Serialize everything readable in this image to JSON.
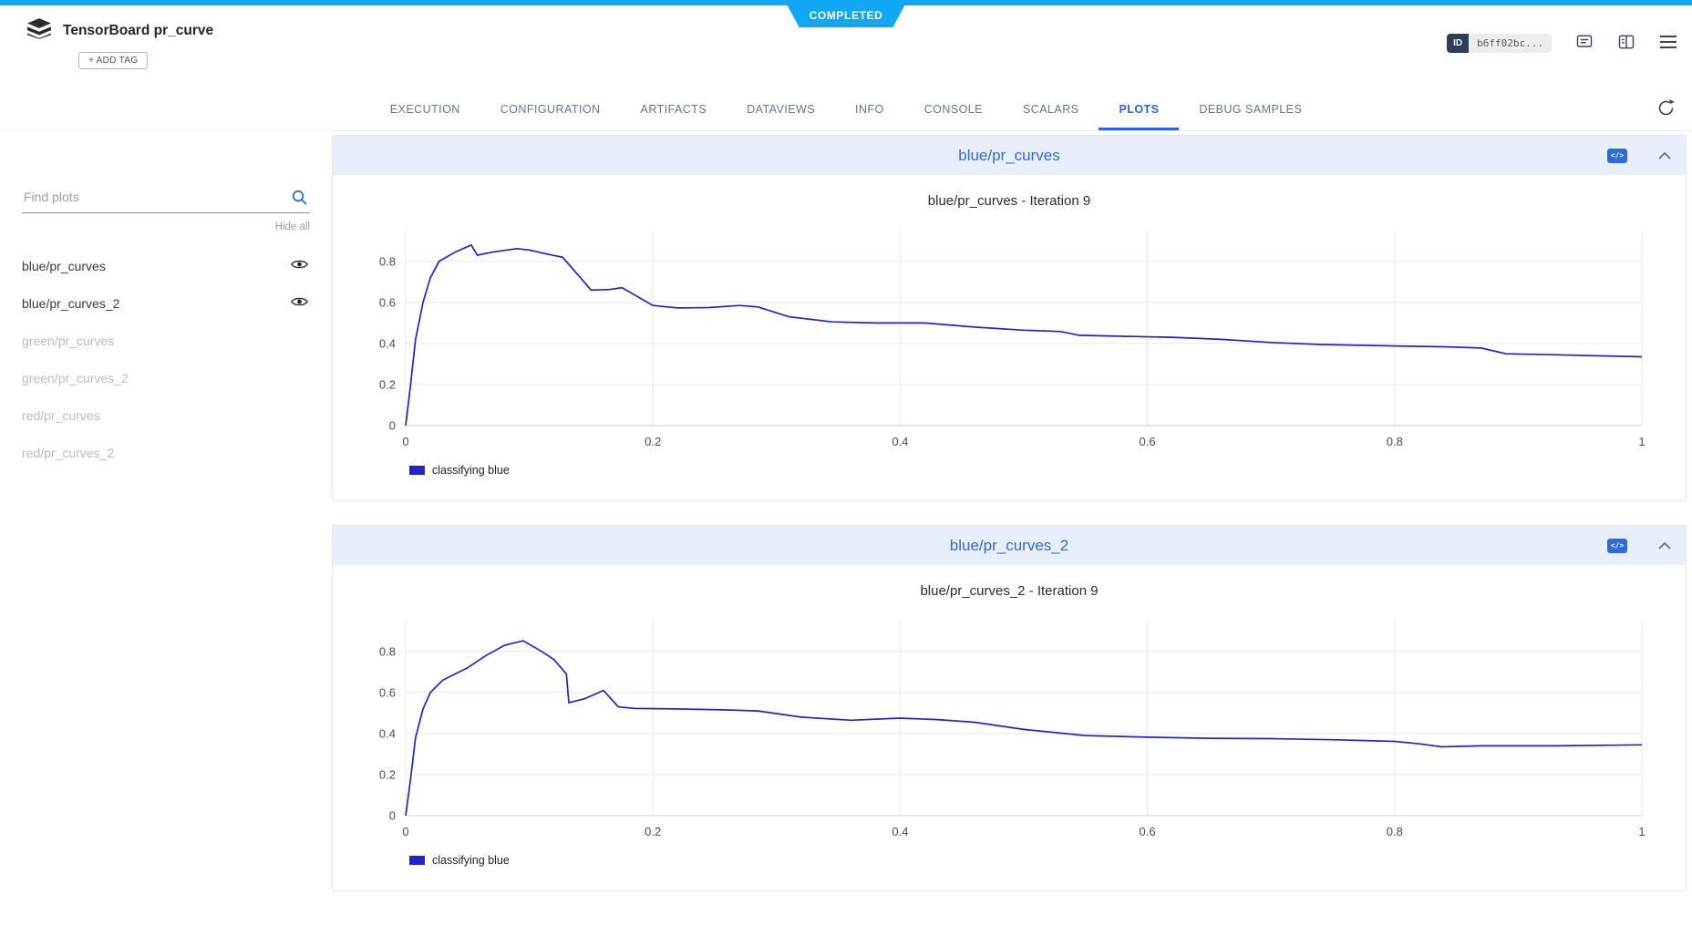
{
  "status_banner": "COMPLETED",
  "header": {
    "title": "TensorBoard pr_curve",
    "add_tag_label": "+ ADD TAG",
    "id_chip": {
      "label": "ID",
      "value": "b6ff02bc..."
    }
  },
  "tabs": [
    {
      "label": "EXECUTION"
    },
    {
      "label": "CONFIGURATION"
    },
    {
      "label": "ARTIFACTS"
    },
    {
      "label": "DATAVIEWS"
    },
    {
      "label": "INFO"
    },
    {
      "label": "CONSOLE"
    },
    {
      "label": "SCALARS"
    },
    {
      "label": "PLOTS",
      "active": true
    },
    {
      "label": "DEBUG SAMPLES"
    }
  ],
  "sidebar": {
    "search_placeholder": "Find plots",
    "hide_all_label": "Hide all",
    "items": [
      {
        "label": "blue/pr_curves",
        "visible": true
      },
      {
        "label": "blue/pr_curves_2",
        "visible": true
      },
      {
        "label": "green/pr_curves",
        "visible": false
      },
      {
        "label": "green/pr_curves_2",
        "visible": false
      },
      {
        "label": "red/pr_curves",
        "visible": false
      },
      {
        "label": "red/pr_curves_2",
        "visible": false
      }
    ]
  },
  "panels": [
    {
      "title": "blue/pr_curves"
    },
    {
      "title": "blue/pr_curves_2"
    }
  ],
  "icons": {
    "code_glyph": "</>"
  },
  "chart_data": [
    {
      "type": "line",
      "title": "blue/pr_curves - Iteration 9",
      "xlim": [
        0,
        1
      ],
      "ylim": [
        0,
        0.95
      ],
      "xticks": [
        0,
        0.2,
        0.4,
        0.6,
        0.8,
        1
      ],
      "yticks": [
        0,
        0.2,
        0.4,
        0.6,
        0.8
      ],
      "grid": true,
      "legend_position": "bottom-left",
      "line_color": "#2323cd",
      "series": [
        {
          "name": "classifying blue",
          "x": [
            0,
            0.004,
            0.008,
            0.014,
            0.02,
            0.027,
            0.04,
            0.053,
            0.058,
            0.07,
            0.09,
            0.1,
            0.115,
            0.127,
            0.14,
            0.15,
            0.165,
            0.175,
            0.2,
            0.22,
            0.245,
            0.27,
            0.285,
            0.31,
            0.345,
            0.38,
            0.42,
            0.46,
            0.5,
            0.53,
            0.545,
            0.58,
            0.62,
            0.66,
            0.7,
            0.74,
            0.8,
            0.84,
            0.87,
            0.89,
            0.93,
            1.0
          ],
          "y": [
            0,
            0.2,
            0.42,
            0.6,
            0.72,
            0.8,
            0.845,
            0.88,
            0.83,
            0.845,
            0.862,
            0.855,
            0.835,
            0.82,
            0.73,
            0.66,
            0.663,
            0.672,
            0.585,
            0.573,
            0.575,
            0.585,
            0.578,
            0.53,
            0.505,
            0.5,
            0.5,
            0.48,
            0.465,
            0.458,
            0.44,
            0.435,
            0.43,
            0.42,
            0.405,
            0.395,
            0.388,
            0.384,
            0.378,
            0.35,
            0.345,
            0.335
          ]
        }
      ]
    },
    {
      "type": "line",
      "title": "blue/pr_curves_2 - Iteration 9",
      "xlim": [
        0,
        1
      ],
      "ylim": [
        0,
        0.95
      ],
      "xticks": [
        0,
        0.2,
        0.4,
        0.6,
        0.8,
        1
      ],
      "yticks": [
        0,
        0.2,
        0.4,
        0.6,
        0.8
      ],
      "grid": true,
      "legend_position": "bottom-left",
      "line_color": "#2323cd",
      "series": [
        {
          "name": "classifying blue",
          "x": [
            0,
            0.004,
            0.008,
            0.014,
            0.02,
            0.03,
            0.05,
            0.065,
            0.08,
            0.095,
            0.11,
            0.12,
            0.13,
            0.132,
            0.145,
            0.16,
            0.172,
            0.185,
            0.22,
            0.26,
            0.285,
            0.32,
            0.36,
            0.4,
            0.43,
            0.46,
            0.5,
            0.55,
            0.6,
            0.65,
            0.7,
            0.75,
            0.8,
            0.82,
            0.838,
            0.87,
            0.93,
            1.0
          ],
          "y": [
            0,
            0.18,
            0.38,
            0.52,
            0.6,
            0.66,
            0.72,
            0.78,
            0.83,
            0.852,
            0.8,
            0.76,
            0.69,
            0.55,
            0.57,
            0.61,
            0.53,
            0.522,
            0.52,
            0.515,
            0.51,
            0.48,
            0.465,
            0.475,
            0.468,
            0.455,
            0.42,
            0.39,
            0.382,
            0.377,
            0.375,
            0.37,
            0.362,
            0.35,
            0.335,
            0.34,
            0.34,
            0.345
          ]
        }
      ]
    }
  ]
}
